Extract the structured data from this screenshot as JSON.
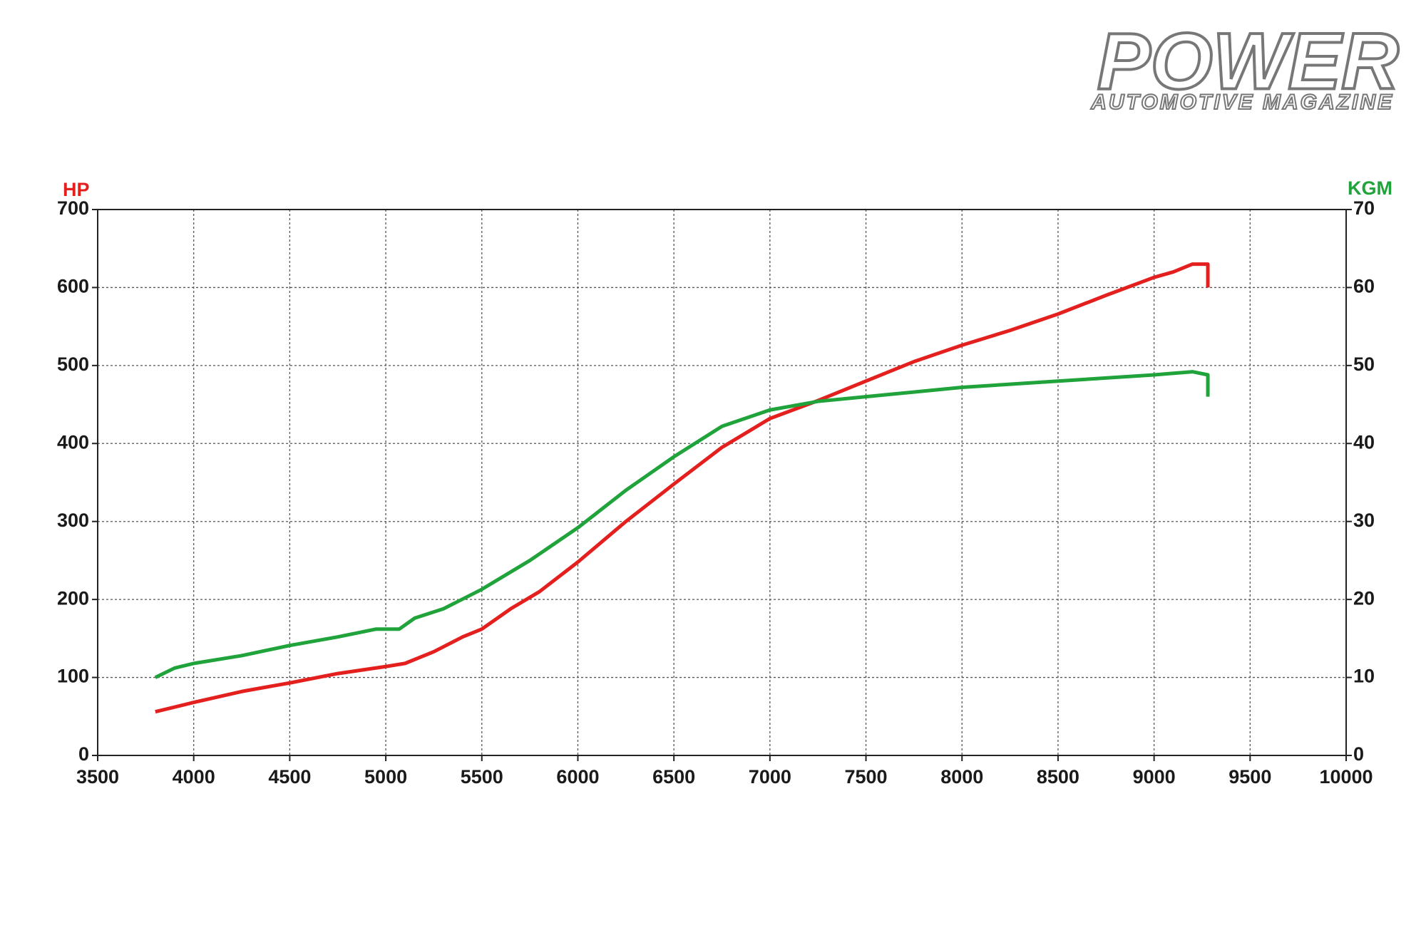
{
  "logo": {
    "title": "POWER",
    "subtitle": "AUTOMOTIVE MAGAZINE"
  },
  "chart_data": {
    "type": "line",
    "y_label": "HP",
    "y2_label": "KGM",
    "xlim": [
      3500,
      10000
    ],
    "xticks": [
      3500,
      4000,
      4500,
      5000,
      5500,
      6000,
      6500,
      7000,
      7500,
      8000,
      8500,
      9000,
      9500,
      10000
    ],
    "ylim": [
      0,
      700
    ],
    "yticks": [
      0,
      100,
      200,
      300,
      400,
      500,
      600,
      700
    ],
    "y2lim": [
      0,
      70
    ],
    "y2ticks": [
      0,
      10,
      20,
      30,
      40,
      50,
      60,
      70
    ],
    "grid": true,
    "series": [
      {
        "name": "HP",
        "color": "#e4201f",
        "x": [
          3800,
          4000,
          4250,
          4500,
          4750,
          5000,
          5100,
          5250,
          5400,
          5500,
          5650,
          5800,
          6000,
          6250,
          6500,
          6750,
          7000,
          7250,
          7500,
          7750,
          8000,
          8250,
          8500,
          8750,
          9000,
          9100,
          9200,
          9280,
          9280
        ],
        "values": [
          56,
          68,
          82,
          93,
          105,
          114,
          118,
          133,
          152,
          162,
          188,
          210,
          248,
          300,
          348,
          395,
          432,
          455,
          480,
          505,
          526,
          545,
          566,
          590,
          613,
          620,
          630,
          630,
          600
        ]
      },
      {
        "name": "KGM",
        "color": "#1fa33a",
        "axis": "y2",
        "x": [
          3800,
          3900,
          4000,
          4250,
          4500,
          4750,
          4950,
          5070,
          5150,
          5300,
          5500,
          5750,
          6000,
          6250,
          6500,
          6750,
          7000,
          7250,
          7500,
          8000,
          8500,
          9000,
          9200,
          9280,
          9280
        ],
        "values": [
          10,
          11.2,
          11.8,
          12.8,
          14.1,
          15.2,
          16.2,
          16.2,
          17.6,
          18.8,
          21.3,
          25,
          29.2,
          34,
          38.3,
          42.2,
          44.3,
          45.4,
          46,
          47.2,
          48,
          48.8,
          49.2,
          48.8,
          46
        ]
      }
    ]
  }
}
